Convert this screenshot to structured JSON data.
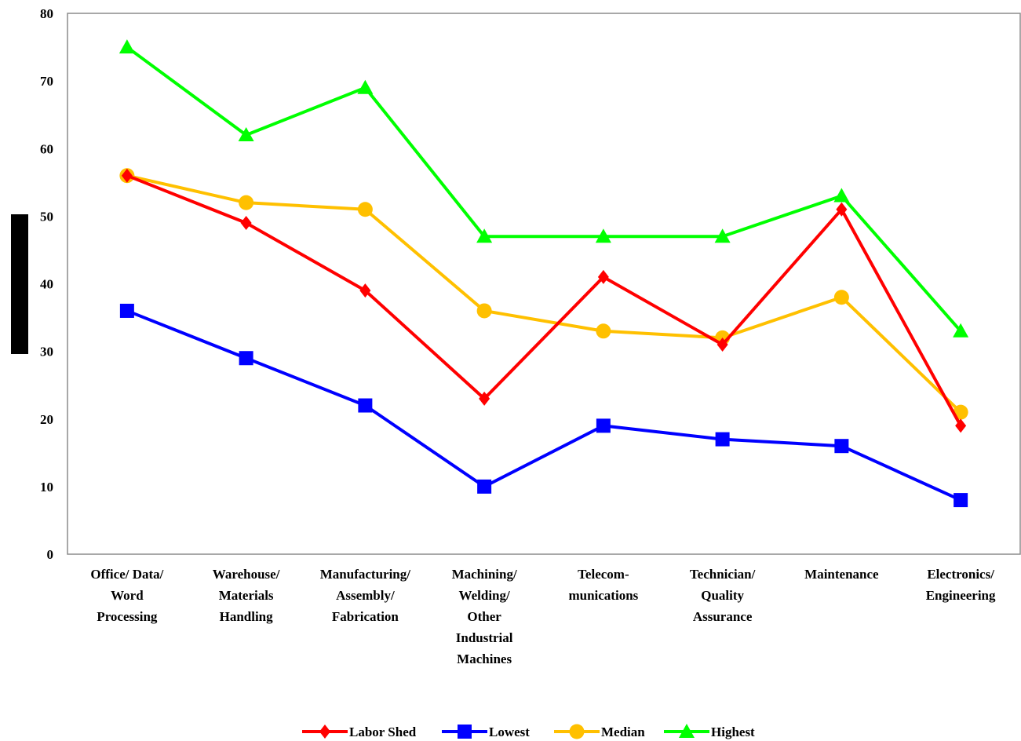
{
  "chart_data": {
    "type": "line",
    "categories": [
      [
        "Office/ Data/",
        "Word",
        "Processing"
      ],
      [
        "Warehouse/",
        "Materials",
        "Handling"
      ],
      [
        "Manufacturing/",
        "Assembly/",
        "Fabrication"
      ],
      [
        "Machining/",
        "Welding/",
        "Other",
        "Industrial",
        "Machines"
      ],
      [
        "Telecom-",
        "munications"
      ],
      [
        "Technician/",
        "Quality",
        "Assurance"
      ],
      [
        "Maintenance"
      ],
      [
        "Electronics/",
        "Engineering"
      ]
    ],
    "ylim": [
      0,
      80
    ],
    "yticks": [
      0,
      10,
      20,
      30,
      40,
      50,
      60,
      70,
      80
    ],
    "series": [
      {
        "name": "Labor Shed",
        "color": "#ff0000",
        "marker": "diamond",
        "values": [
          56,
          49,
          39,
          23,
          41,
          31,
          51,
          19
        ]
      },
      {
        "name": "Lowest",
        "color": "#0000ff",
        "marker": "square",
        "values": [
          36,
          29,
          22,
          10,
          19,
          17,
          16,
          8
        ]
      },
      {
        "name": "Median",
        "color": "#ffc000",
        "marker": "circle",
        "values": [
          56,
          52,
          51,
          36,
          33,
          32,
          38,
          21
        ]
      },
      {
        "name": "Highest",
        "color": "#00ff00",
        "marker": "triangle",
        "values": [
          75,
          62,
          69,
          47,
          47,
          47,
          53,
          33
        ]
      }
    ],
    "legend_position": "bottom"
  }
}
